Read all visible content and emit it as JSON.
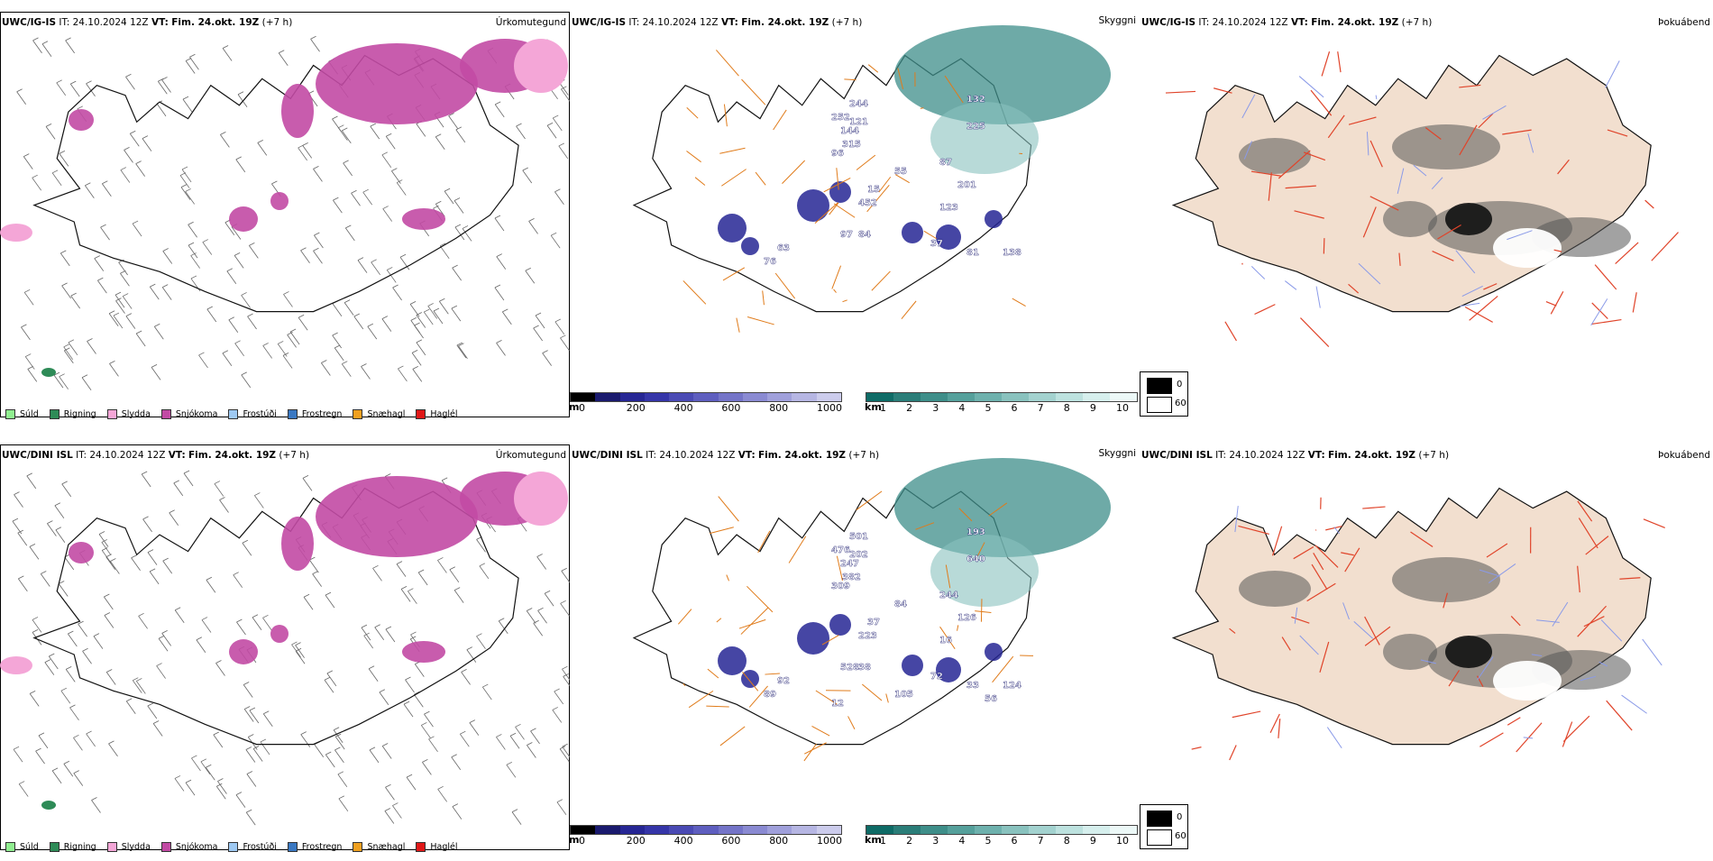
{
  "rows": [
    {
      "model": "UWC/IG-IS",
      "it_label": "IT:",
      "it_value": "24.10.2024 12Z",
      "vt_label": "VT:",
      "vt_value": "Fim. 24.okt. 19Z",
      "lead": "(+7 h)",
      "titles": [
        "Úrkomutegund",
        "Skyggni",
        "Þokuábendi"
      ],
      "vis_labels": [
        "244",
        "252",
        "121",
        "144",
        "315",
        "132",
        "225",
        "55",
        "87",
        "96",
        "201",
        "15",
        "452",
        "123",
        "97",
        "84",
        "63",
        "76",
        "37",
        "81",
        "138"
      ]
    },
    {
      "model": "UWC/DINI ISL",
      "it_label": "IT:",
      "it_value": "24.10.2024 12Z",
      "vt_label": "VT:",
      "vt_value": "Fim. 24.okt. 19Z",
      "lead": "(+7 h)",
      "titles": [
        "Úrkomutegund",
        "Skyggni",
        "Þokuábendi"
      ],
      "vis_labels": [
        "501",
        "476",
        "202",
        "247",
        "382",
        "193",
        "640",
        "84",
        "244",
        "309",
        "126",
        "37",
        "223",
        "16",
        "528",
        "38",
        "92",
        "89",
        "72",
        "33",
        "124",
        "56",
        "105",
        "12"
      ]
    }
  ],
  "precip_legend": [
    {
      "label": "Súld",
      "color": "#90ee90"
    },
    {
      "label": "Rigning",
      "color": "#2e8b57"
    },
    {
      "label": "Slydda",
      "color": "#f4a6d7"
    },
    {
      "label": "Snjókoma",
      "color": "#c24aa4"
    },
    {
      "label": "Frostúði",
      "color": "#9ec9f2"
    },
    {
      "label": "Frostregn",
      "color": "#3a78c2"
    },
    {
      "label": "Snæhagl",
      "color": "#f0a020"
    },
    {
      "label": "Haglél",
      "color": "#e01818"
    }
  ],
  "ceiling_bar": {
    "unit": "m",
    "ticks": [
      "0",
      "200",
      "400",
      "600",
      "800",
      "1000"
    ],
    "colors": [
      "#000000",
      "#1a1a6e",
      "#262694",
      "#3535a8",
      "#4a4ab4",
      "#5e5ebf",
      "#7474c8",
      "#8a8ad2",
      "#a0a0db",
      "#b6b6e3",
      "#ccccec"
    ]
  },
  "visibility_bar": {
    "unit": "km",
    "ticks": [
      "1",
      "2",
      "3",
      "4",
      "5",
      "6",
      "7",
      "8",
      "9",
      "10"
    ],
    "colors": [
      "#0e6b66",
      "#2a7d78",
      "#3e8e89",
      "#55a09b",
      "#6eb1ad",
      "#89c2be",
      "#a3d2cf",
      "#bde2df",
      "#d6efed",
      "#ecf8f7"
    ]
  },
  "fog_key": {
    "labels": [
      "0",
      "60"
    ]
  }
}
